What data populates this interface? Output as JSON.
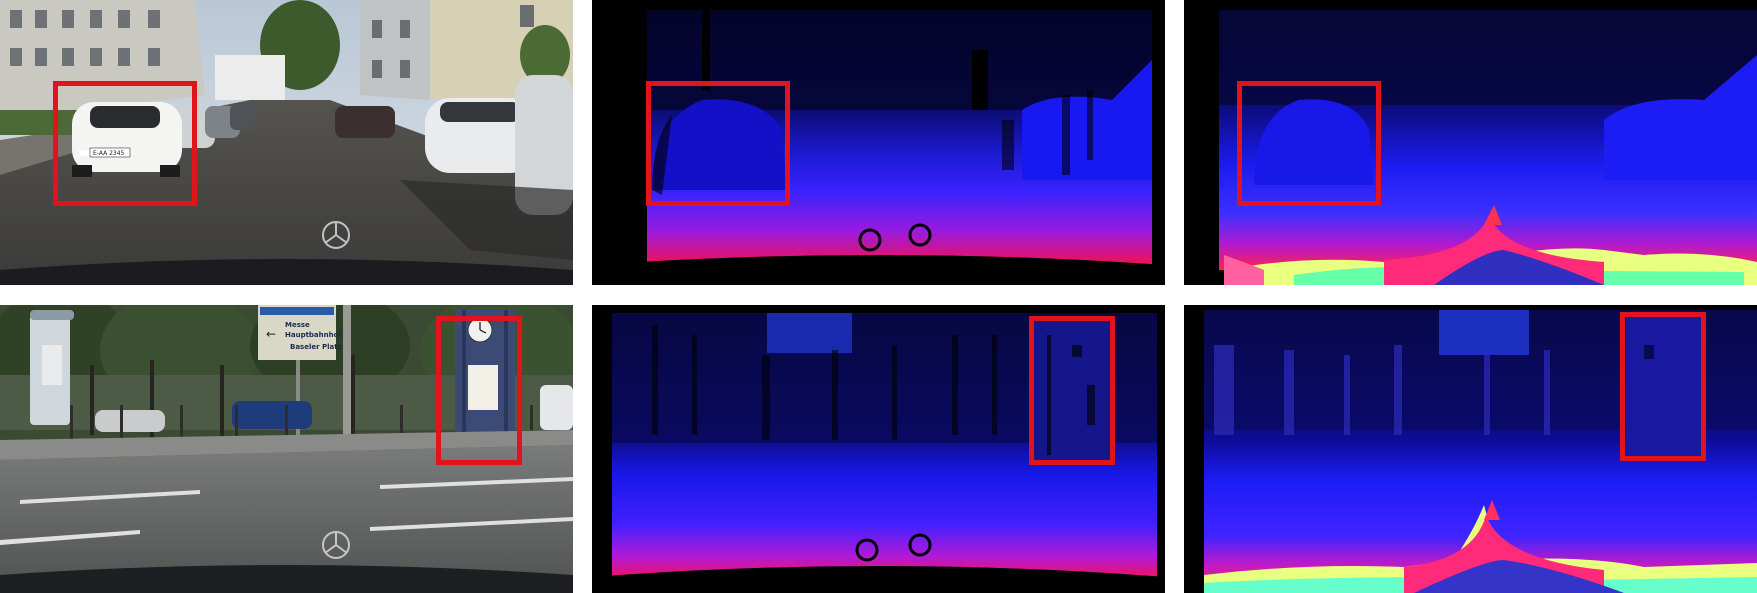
{
  "figure": {
    "rows": 2,
    "columns": 3,
    "colors": {
      "highlight": "#e0141a",
      "depth_near": "#ff1040",
      "depth_mid": "#2020ff",
      "depth_far": "#05052a",
      "invalid": "#000000"
    }
  },
  "row1": {
    "rgb": {
      "plate": "E-AA 2345"
    }
  },
  "row2": {
    "rgb": {
      "sign_arrow": "←",
      "sign_line1": "Messe",
      "sign_line2": "Hauptbahnhof",
      "sign_line3": "Baseler Platz"
    }
  }
}
